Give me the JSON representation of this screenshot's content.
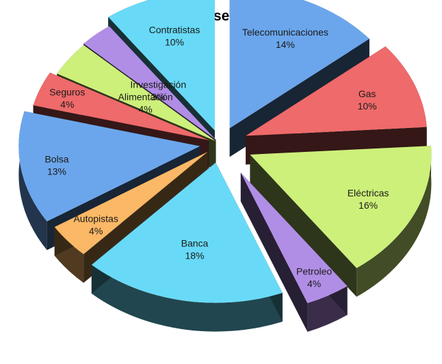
{
  "chart_data": {
    "type": "pie",
    "title": "Por sector",
    "slices": [
      {
        "label": "Telecomunicaciones",
        "value": 14,
        "display": "14%",
        "color": "#6ba6ec"
      },
      {
        "label": "Gas",
        "value": 10,
        "display": "10%",
        "color": "#ef6a6a"
      },
      {
        "label": "Eléctricas",
        "value": 16,
        "display": "16%",
        "color": "#cdf07a"
      },
      {
        "label": "Petroleo",
        "value": 4,
        "display": "4%",
        "color": "#b18ee6"
      },
      {
        "label": "Banca",
        "value": 18,
        "display": "18%",
        "color": "#68daf7"
      },
      {
        "label": "Autopistas",
        "value": 4,
        "display": "4%",
        "color": "#fbb866"
      },
      {
        "label": "Bolsa",
        "value": 13,
        "display": "13%",
        "color": "#6ba6ec"
      },
      {
        "label": "Seguros",
        "value": 4,
        "display": "4%",
        "color": "#ef6a6a"
      },
      {
        "label": "Alimentación",
        "value": 4,
        "display": "4%",
        "color": "#cdf07a"
      },
      {
        "label": "Investigación",
        "value": 3,
        "display": "3%",
        "color": "#b18ee6"
      },
      {
        "label": "Contratistas",
        "value": 10,
        "display": "10%",
        "color": "#68daf7"
      }
    ]
  }
}
